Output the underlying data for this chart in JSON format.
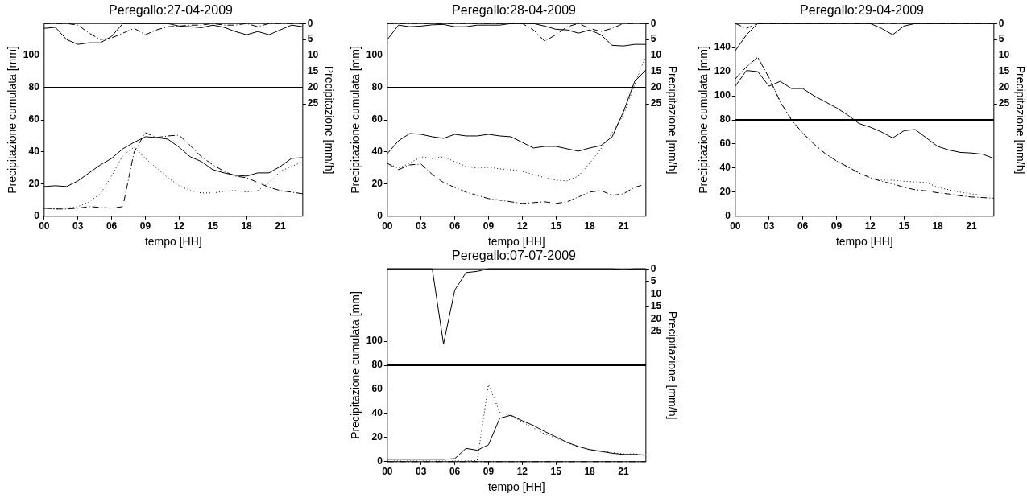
{
  "chart_data": [
    {
      "type": "line",
      "title": "Peregallo:27-04-2009",
      "xlabel": "tempo [HH]",
      "ylabel": "Precipitazione cumulata [mm]",
      "y2label": "Precipitazione [mm/h]",
      "marker": "none",
      "grid": false,
      "legend": false,
      "x": [
        0,
        1,
        2,
        3,
        4,
        5,
        6,
        7,
        8,
        9,
        10,
        11,
        12,
        13,
        14,
        15,
        16,
        17,
        18,
        19,
        20,
        21,
        22,
        23
      ],
      "xlim": [
        0,
        23
      ],
      "xticks": [
        {
          "value": 0,
          "label": "00"
        },
        {
          "value": 3,
          "label": "03"
        },
        {
          "value": 6,
          "label": "06"
        },
        {
          "value": 9,
          "label": "09"
        },
        {
          "value": 12,
          "label": "12"
        },
        {
          "value": 15,
          "label": "15"
        },
        {
          "value": 18,
          "label": "18"
        },
        {
          "value": 21,
          "label": "21"
        }
      ],
      "ylim": [
        0,
        120
      ],
      "yticks": [
        0,
        20,
        40,
        60,
        80,
        100
      ],
      "y2lim": [
        60,
        0
      ],
      "y2ticks": [
        0,
        5,
        10,
        15,
        20,
        25
      ],
      "ref_lines": [
        {
          "axis": "y",
          "value": 80,
          "color": "#000000"
        }
      ],
      "series": [
        {
          "color": "#000000",
          "line_style": "solid",
          "values": [
            18.5,
            19,
            18.5,
            22,
            27,
            32,
            36,
            42,
            46,
            49.5,
            49,
            48,
            43,
            37,
            34,
            29,
            27,
            25.5,
            25,
            27,
            27,
            31,
            36,
            36.5
          ]
        },
        {
          "color": "#000000",
          "line_style": "dotted",
          "values": [
            5,
            4.5,
            5,
            6,
            9,
            14,
            25,
            38,
            43,
            36,
            30,
            24,
            19,
            16,
            14.5,
            14.5,
            15.5,
            16,
            15,
            16,
            21,
            28,
            31,
            34
          ]
        },
        {
          "color": "#000000",
          "line_style": "dashdot",
          "values": [
            5,
            4.5,
            4.5,
            5,
            6,
            5.5,
            5,
            6,
            40,
            52,
            49,
            50,
            50.5,
            44,
            37,
            32,
            28,
            25,
            24,
            21,
            18,
            16,
            15,
            14
          ]
        },
        {
          "color": "#000000",
          "line_style": "solid",
          "axis": "y2",
          "values": [
            1.5,
            1.2,
            5,
            6.5,
            6,
            6,
            4,
            0,
            0,
            0,
            0,
            0,
            0.8,
            1,
            1.3,
            0.5,
            1.2,
            2.5,
            3.5,
            2.5,
            3.5,
            2,
            0.5,
            1
          ]
        },
        {
          "color": "#000000",
          "line_style": "dashdot",
          "axis": "y2",
          "values": [
            0,
            0,
            0,
            0.5,
            3,
            5,
            4.5,
            3,
            1.5,
            3.5,
            2,
            1,
            0.8,
            0.5,
            0.5,
            0,
            0.5,
            0.5,
            0,
            1,
            0,
            0,
            0,
            0
          ]
        }
      ]
    },
    {
      "type": "line",
      "title": "Peregallo:28-04-2009",
      "xlabel": "tempo [HH]",
      "ylabel": "Precipitazione cumulata [mm]",
      "y2label": "Precipitazione [mm/h]",
      "marker": "none",
      "grid": false,
      "legend": false,
      "x": [
        0,
        1,
        2,
        3,
        4,
        5,
        6,
        7,
        8,
        9,
        10,
        11,
        12,
        13,
        14,
        15,
        16,
        17,
        18,
        19,
        20,
        21,
        22,
        23
      ],
      "xlim": [
        0,
        23
      ],
      "xticks": [
        {
          "value": 0,
          "label": "00"
        },
        {
          "value": 3,
          "label": "03"
        },
        {
          "value": 6,
          "label": "06"
        },
        {
          "value": 9,
          "label": "09"
        },
        {
          "value": 12,
          "label": "12"
        },
        {
          "value": 15,
          "label": "15"
        },
        {
          "value": 18,
          "label": "18"
        },
        {
          "value": 21,
          "label": "21"
        }
      ],
      "ylim": [
        0,
        120
      ],
      "yticks": [
        0,
        20,
        40,
        60,
        80,
        100
      ],
      "y2lim": [
        60,
        0
      ],
      "y2ticks": [
        0,
        5,
        10,
        15,
        20,
        25
      ],
      "ref_lines": [
        {
          "axis": "y",
          "value": 80,
          "color": "#000000"
        }
      ],
      "series": [
        {
          "color": "#000000",
          "line_style": "solid",
          "values": [
            39,
            47,
            51.5,
            51,
            49.5,
            48.5,
            51,
            50,
            50,
            51,
            50,
            49.5,
            46,
            42.5,
            43.5,
            43.5,
            42,
            40.5,
            42.5,
            44,
            49.5,
            65,
            84,
            91
          ]
        },
        {
          "color": "#000000",
          "line_style": "dotted",
          "values": [
            33,
            30,
            33,
            37,
            36,
            37,
            34,
            31,
            30,
            30.5,
            29.5,
            29,
            28,
            26,
            24,
            22.5,
            22,
            25,
            33,
            42,
            52,
            63,
            82,
            100
          ]
        },
        {
          "color": "#000000",
          "line_style": "dashdot",
          "values": [
            33,
            29,
            32,
            32.5,
            26,
            21,
            18,
            15,
            13,
            11,
            10,
            9,
            8,
            8.5,
            9,
            8,
            9,
            12,
            15,
            16,
            13,
            14,
            18,
            20
          ]
        },
        {
          "color": "#000000",
          "line_style": "solid",
          "axis": "y2",
          "values": [
            5,
            0.5,
            1,
            0.8,
            0.4,
            0.3,
            1,
            1,
            0.5,
            0.5,
            0.5,
            0,
            0,
            0,
            0.8,
            1.8,
            2,
            3,
            2,
            3.5,
            6.8,
            7,
            6.5,
            6.5
          ]
        },
        {
          "color": "#000000",
          "line_style": "dashdot",
          "axis": "y2",
          "values": [
            0,
            0,
            0,
            0,
            0,
            0,
            0,
            0,
            0,
            0,
            0,
            0,
            0,
            2,
            5.5,
            3.5,
            1,
            0,
            1.5,
            2.5,
            1.5,
            0,
            0,
            0
          ]
        }
      ]
    },
    {
      "type": "line",
      "title": "Peregallo:29-04-2009",
      "xlabel": "tempo [HH]",
      "ylabel": "Precipitazione cumulata [mm]",
      "y2label": "Precipitazione [mm/h]",
      "marker": "none",
      "grid": false,
      "legend": false,
      "x": [
        0,
        1,
        2,
        3,
        4,
        5,
        6,
        7,
        8,
        9,
        10,
        11,
        12,
        13,
        14,
        15,
        16,
        17,
        18,
        19,
        20,
        21,
        22,
        23
      ],
      "xlim": [
        0,
        23
      ],
      "xticks": [
        {
          "value": 0,
          "label": "00"
        },
        {
          "value": 3,
          "label": "03"
        },
        {
          "value": 6,
          "label": "06"
        },
        {
          "value": 9,
          "label": "09"
        },
        {
          "value": 12,
          "label": "12"
        },
        {
          "value": 15,
          "label": "15"
        },
        {
          "value": 18,
          "label": "18"
        },
        {
          "value": 21,
          "label": "21"
        }
      ],
      "ylim": [
        0,
        160
      ],
      "yticks": [
        0,
        20,
        40,
        60,
        80,
        100,
        120,
        140
      ],
      "y2lim": [
        60,
        0
      ],
      "y2ticks": [
        0,
        5,
        10,
        15,
        20,
        25
      ],
      "ref_lines": [
        {
          "axis": "y",
          "value": 80,
          "color": "#000000"
        }
      ],
      "series": [
        {
          "color": "#000000",
          "line_style": "solid",
          "values": [
            108,
            121,
            120,
            108,
            112,
            106,
            106,
            100,
            95,
            90,
            84,
            77,
            74,
            70,
            65,
            71,
            72,
            65,
            58,
            55,
            53,
            52.5,
            51.5,
            48
          ]
        },
        {
          "color": "#000000",
          "line_style": "dotted",
          "values": [
            114,
            124,
            132,
            115,
            95,
            80,
            69,
            60,
            52,
            46,
            41,
            36,
            32,
            30,
            30,
            29,
            28.5,
            28,
            24,
            22,
            20,
            18.5,
            17.5,
            17.5
          ]
        },
        {
          "color": "#000000",
          "line_style": "dashdot",
          "values": [
            114,
            124,
            132,
            115,
            95,
            80,
            69,
            60,
            52,
            46,
            41,
            36,
            32,
            29,
            27,
            24,
            22,
            21,
            19.5,
            18.5,
            17,
            16,
            15.5,
            15
          ]
        },
        {
          "color": "#000000",
          "line_style": "solid",
          "axis": "y2",
          "values": [
            8.5,
            3.5,
            0,
            0,
            0,
            0,
            0,
            0,
            0,
            0,
            0,
            0,
            0,
            1.5,
            3.5,
            0.8,
            0,
            0,
            0,
            0,
            0,
            0,
            0,
            0
          ]
        },
        {
          "color": "#000000",
          "line_style": "dashdot",
          "axis": "y2",
          "values": [
            0,
            1.5,
            0,
            0,
            0,
            0,
            0,
            0,
            0,
            0,
            0,
            0,
            0,
            0,
            0,
            0,
            0,
            0,
            0,
            0,
            0,
            0,
            0,
            0
          ]
        }
      ]
    },
    {
      "type": "line",
      "title": "Peregallo:07-07-2009",
      "xlabel": "tempo [HH]",
      "ylabel": "Precipitazione cumulata [mm]",
      "y2label": "Precipitazione [mm/h]",
      "marker": "none",
      "grid": false,
      "legend": false,
      "x": [
        0,
        1,
        2,
        3,
        4,
        5,
        6,
        7,
        8,
        9,
        10,
        11,
        12,
        13,
        14,
        15,
        16,
        17,
        18,
        19,
        20,
        21,
        22,
        23
      ],
      "xlim": [
        0,
        23
      ],
      "xticks": [
        {
          "value": 0,
          "label": "00"
        },
        {
          "value": 3,
          "label": "03"
        },
        {
          "value": 6,
          "label": "06"
        },
        {
          "value": 9,
          "label": "09"
        },
        {
          "value": 12,
          "label": "12"
        },
        {
          "value": 15,
          "label": "15"
        },
        {
          "value": 18,
          "label": "18"
        },
        {
          "value": 21,
          "label": "21"
        }
      ],
      "ylim": [
        0,
        160
      ],
      "yticks": [
        0,
        20,
        40,
        60,
        80,
        100
      ],
      "y2lim": [
        77,
        0
      ],
      "y2ticks": [
        0,
        5,
        10,
        15,
        20,
        25
      ],
      "ref_lines": [
        {
          "axis": "y",
          "value": 80,
          "color": "#000000"
        }
      ],
      "series": [
        {
          "color": "#000000",
          "line_style": "solid",
          "values": [
            2,
            2,
            2,
            2,
            2,
            2,
            2.5,
            11,
            9.5,
            14,
            36,
            38.5,
            34,
            30,
            25,
            20.5,
            16,
            12.5,
            10,
            8.5,
            7,
            6,
            6,
            5.5
          ]
        },
        {
          "color": "#000000",
          "line_style": "dotted",
          "values": [
            0.5,
            0.5,
            0.5,
            0.5,
            0.5,
            0.5,
            0.5,
            0.5,
            1,
            64,
            41,
            38,
            33,
            28,
            23,
            19.5,
            15.5,
            12.5,
            10,
            9,
            7.5,
            6.5,
            6.5,
            5
          ]
        },
        {
          "color": "#000000",
          "line_style": "dashdot",
          "values": [
            0,
            0,
            0,
            0,
            0,
            0,
            0,
            0,
            0,
            0,
            0,
            0,
            0,
            0,
            0,
            0,
            0,
            0,
            0,
            0,
            0,
            0,
            0,
            0
          ]
        },
        {
          "color": "#000000",
          "line_style": "solid",
          "axis": "y2",
          "values": [
            0,
            0,
            0,
            0,
            0,
            30,
            8.5,
            1.5,
            1,
            0,
            0,
            0,
            0,
            0,
            0,
            0,
            0,
            0,
            0,
            0,
            0,
            0.3,
            0,
            0
          ]
        }
      ]
    }
  ]
}
